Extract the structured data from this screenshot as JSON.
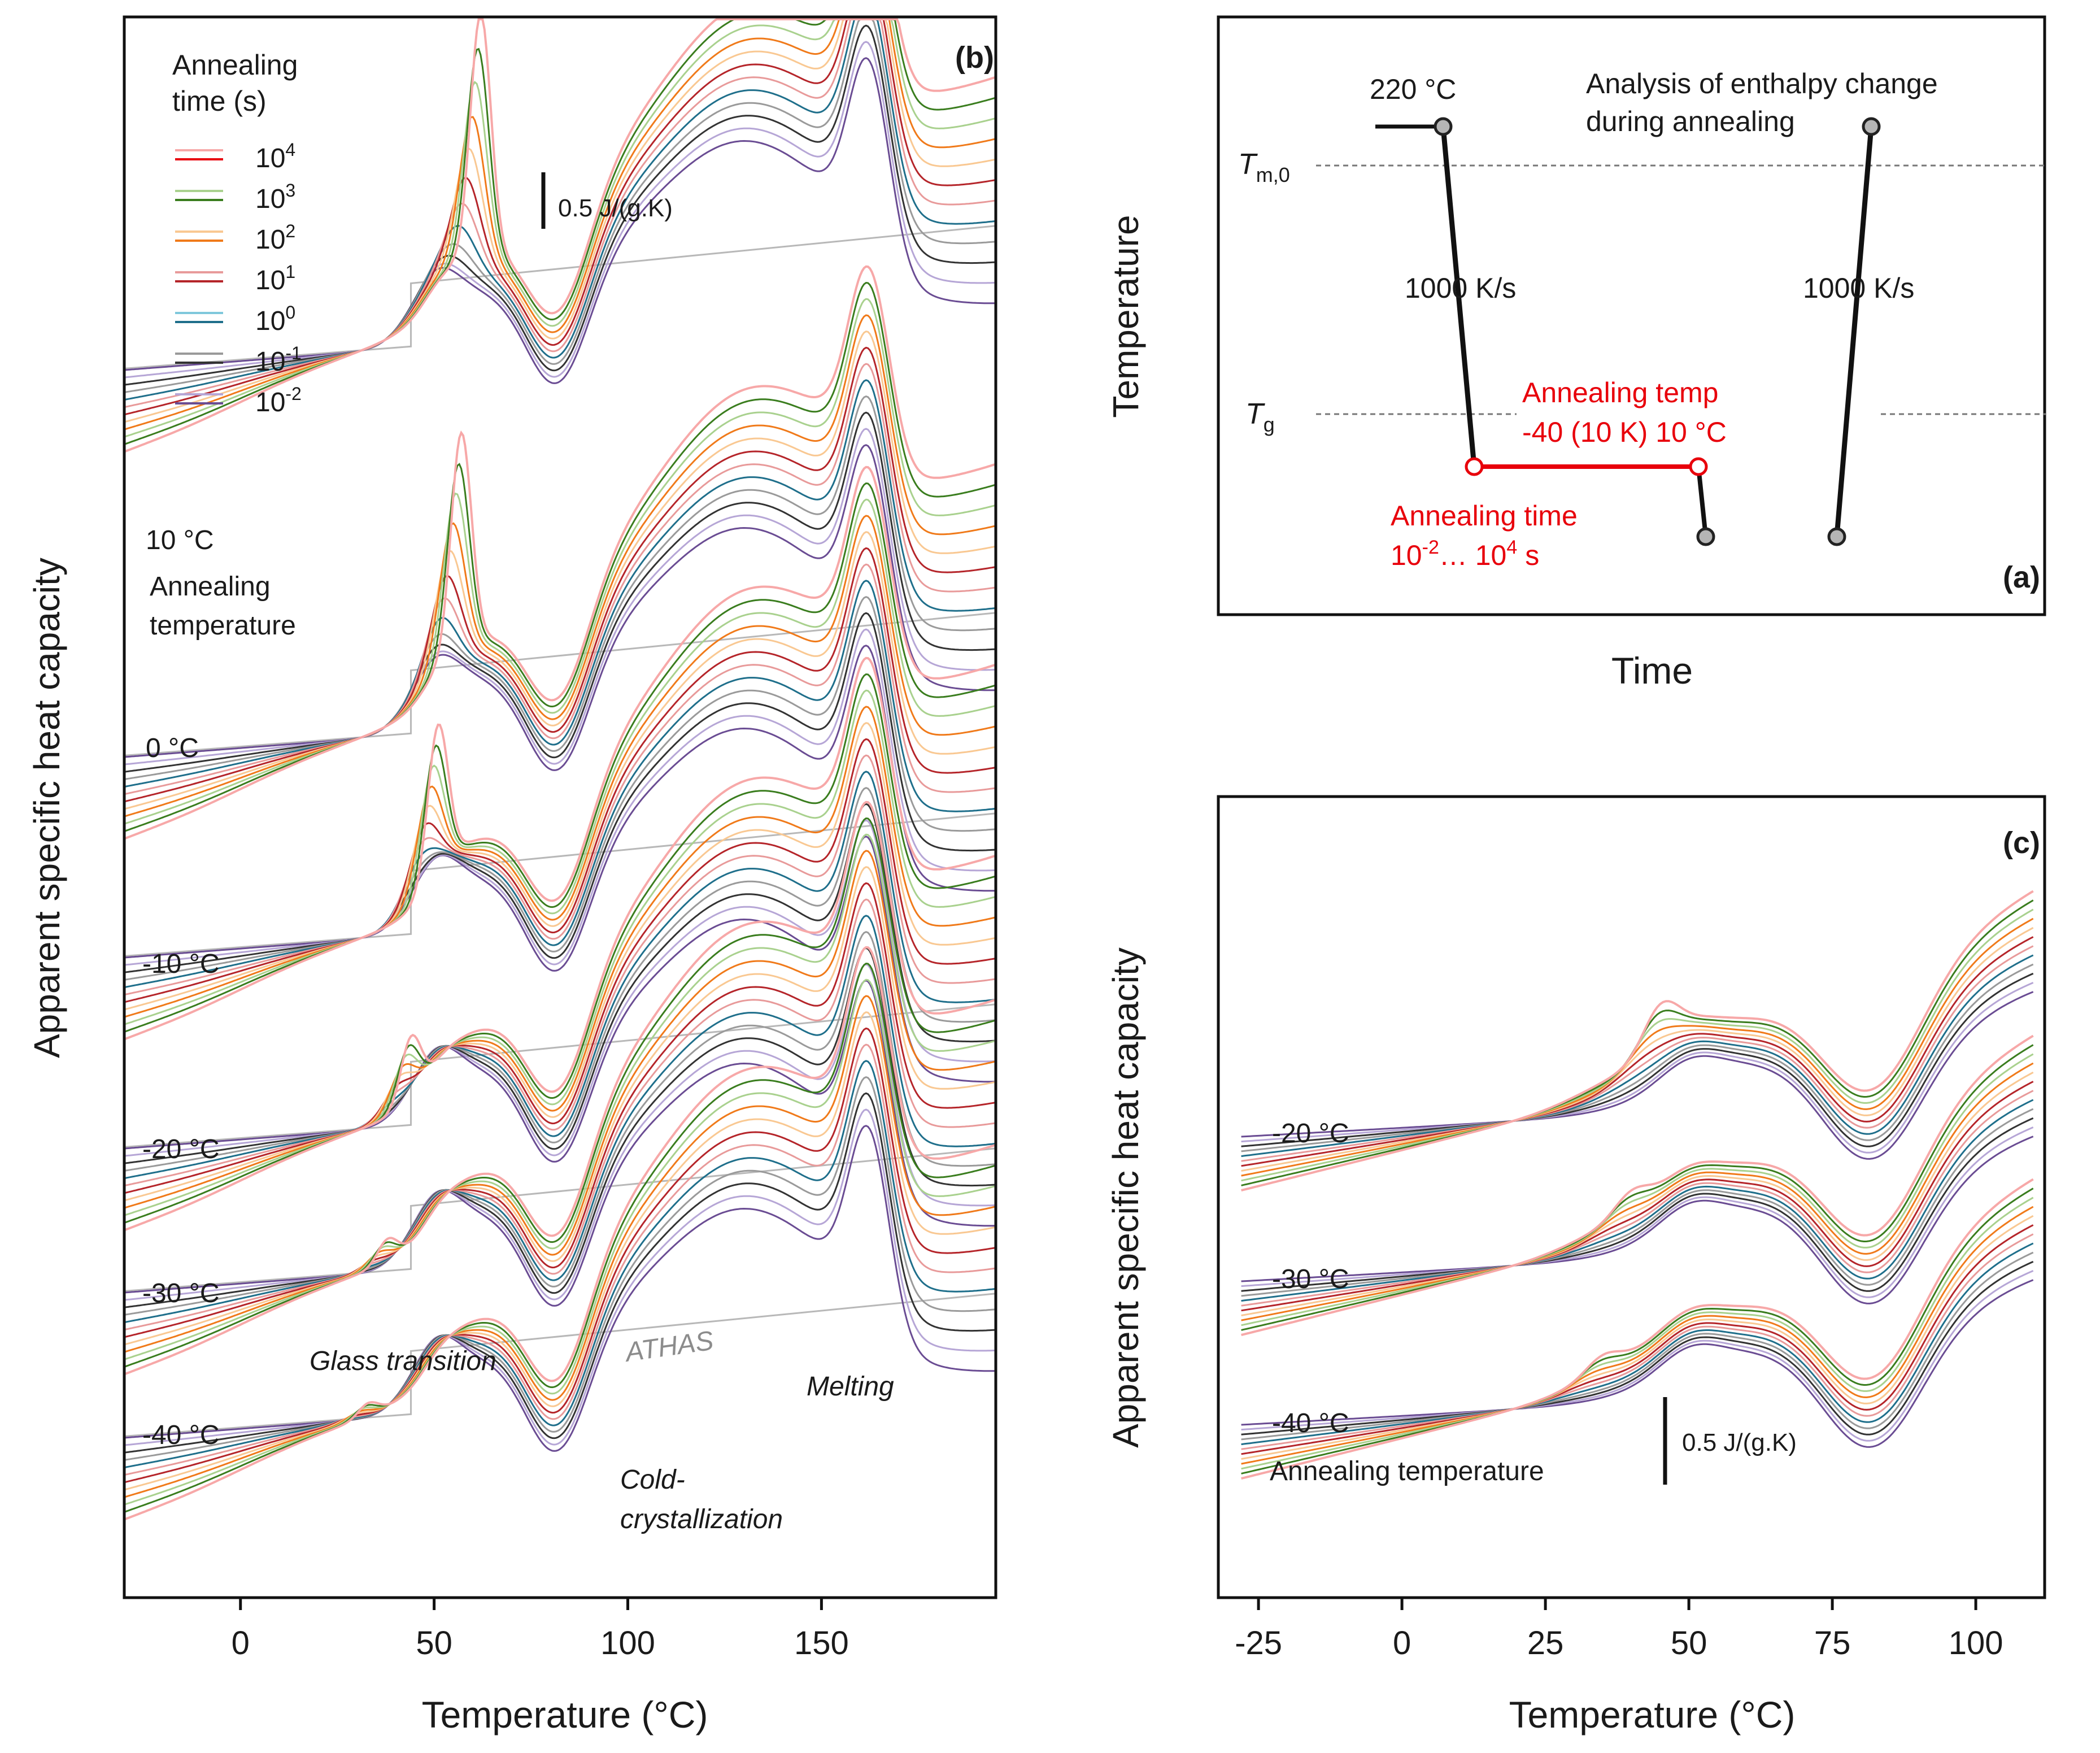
{
  "chart_data": [
    {
      "panel": "(b)",
      "type": "line",
      "xlabel": "Temperature (°C)",
      "ylabel": "Apparent specific heat capacity",
      "xlim": [
        -30,
        195
      ],
      "xticks": [
        0,
        50,
        100,
        150
      ],
      "legend_title": "Annealing time (s)",
      "legend": [
        {
          "label": "10",
          "exp": "4",
          "color": "#e8000b"
        },
        {
          "label": "10",
          "exp": "3",
          "color": "#3a7d1e"
        },
        {
          "label": "10",
          "exp": "2",
          "color": "#f07a1a"
        },
        {
          "label": "10",
          "exp": "1",
          "color": "#b5252a"
        },
        {
          "label": "10",
          "exp": "0",
          "color": "#1f6f8b"
        },
        {
          "label": "10",
          "exp": "-1",
          "color": "#333333"
        },
        {
          "label": "10",
          "exp": "-2",
          "color": "#6a4c93"
        }
      ],
      "annealing_temperatures": [
        "10 °C",
        "0 °C",
        "-10 °C",
        "-20 °C",
        "-30 °C",
        "-40 °C"
      ],
      "annealing_temperature_label": "Annealing temperature",
      "scale_bar": "0.5 J/(g.K)",
      "annotations": {
        "glass": "Glass transition",
        "athas": "ATHAS",
        "melting": "Melting",
        "cold1": "Cold-",
        "cold2": "crystallization"
      },
      "features": {
        "glass_transition_c": 48,
        "cold_crystallization_min_c": 82,
        "melting_peak_c": 162,
        "overshoot_peak_c": [
          62,
          57,
          51,
          44,
          38,
          33
        ]
      }
    },
    {
      "panel": "(a)",
      "type": "diagram",
      "xlabel": "Time",
      "ylabel": "Temperature",
      "labels": {
        "start_temp": "220 °C",
        "analysis1": "Analysis of enthalpy change",
        "analysis2": "during annealing",
        "rate1": "1000 K/s",
        "rate2": "1000 K/s",
        "tm_sym": "T",
        "tm_sub": "m,0",
        "tg_sym": "T",
        "tg_sub": "g",
        "anneal_temp1": "Annealing temp",
        "anneal_temp2": "-40 (10 K) 10 °C",
        "anneal_time1": "Annealing time",
        "anneal_time2a": "10",
        "anneal_time2_exp1": "-2",
        "anneal_time2b": "… 10",
        "anneal_time2_exp2": "4",
        "anneal_time2c": " s"
      }
    },
    {
      "panel": "(c)",
      "type": "line",
      "xlabel": "Temperature (°C)",
      "ylabel": "Apparent specific heat capacity",
      "xlim": [
        -32,
        112
      ],
      "xticks": [
        -25,
        0,
        25,
        50,
        75,
        100
      ],
      "annealing_temperatures": [
        "-20 °C",
        "-30 °C",
        "-40 °C"
      ],
      "annealing_temperature_label": "Annealing temperature",
      "scale_bar": "0.5 J/(g.K)",
      "features": {
        "glass_transition_c": 50,
        "cold_crystallization_min_c": 82,
        "overshoot_peak_c": [
          45,
          40,
          35
        ]
      }
    }
  ]
}
